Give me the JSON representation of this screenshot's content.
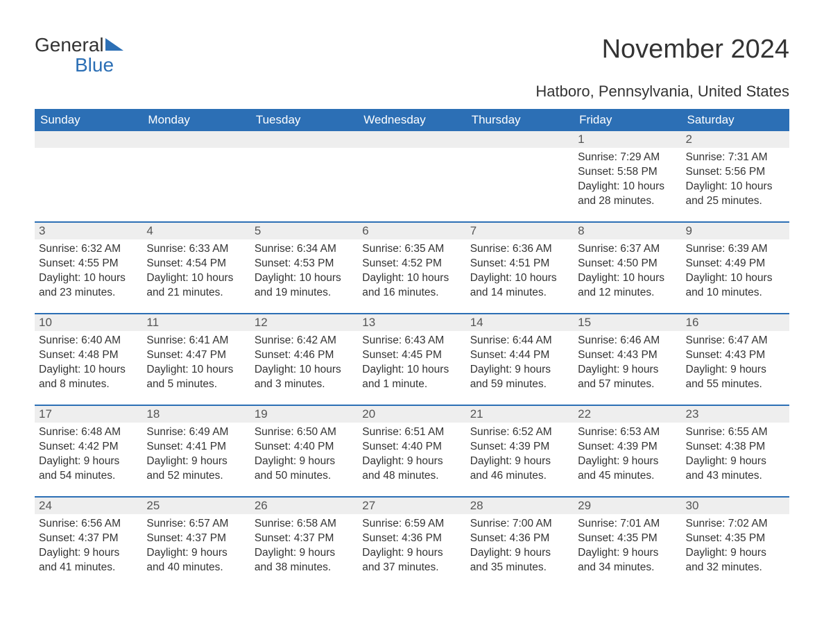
{
  "logo": {
    "line1": "General",
    "line2": "Blue",
    "brand_color": "#2c6fb5"
  },
  "title": "November 2024",
  "location": "Hatboro, Pennsylvania, United States",
  "colors": {
    "header_bg": "#2c6fb5",
    "header_text": "#ffffff",
    "daynum_bg": "#eeeeee",
    "text": "#333333",
    "week_divider": "#2c6fb5"
  },
  "weekdays": [
    "Sunday",
    "Monday",
    "Tuesday",
    "Wednesday",
    "Thursday",
    "Friday",
    "Saturday"
  ],
  "weeks": [
    [
      {
        "day": null
      },
      {
        "day": null
      },
      {
        "day": null
      },
      {
        "day": null
      },
      {
        "day": null
      },
      {
        "day": 1,
        "sunrise": "Sunrise: 7:29 AM",
        "sunset": "Sunset: 5:58 PM",
        "daylight1": "Daylight: 10 hours",
        "daylight2": "and 28 minutes."
      },
      {
        "day": 2,
        "sunrise": "Sunrise: 7:31 AM",
        "sunset": "Sunset: 5:56 PM",
        "daylight1": "Daylight: 10 hours",
        "daylight2": "and 25 minutes."
      }
    ],
    [
      {
        "day": 3,
        "sunrise": "Sunrise: 6:32 AM",
        "sunset": "Sunset: 4:55 PM",
        "daylight1": "Daylight: 10 hours",
        "daylight2": "and 23 minutes."
      },
      {
        "day": 4,
        "sunrise": "Sunrise: 6:33 AM",
        "sunset": "Sunset: 4:54 PM",
        "daylight1": "Daylight: 10 hours",
        "daylight2": "and 21 minutes."
      },
      {
        "day": 5,
        "sunrise": "Sunrise: 6:34 AM",
        "sunset": "Sunset: 4:53 PM",
        "daylight1": "Daylight: 10 hours",
        "daylight2": "and 19 minutes."
      },
      {
        "day": 6,
        "sunrise": "Sunrise: 6:35 AM",
        "sunset": "Sunset: 4:52 PM",
        "daylight1": "Daylight: 10 hours",
        "daylight2": "and 16 minutes."
      },
      {
        "day": 7,
        "sunrise": "Sunrise: 6:36 AM",
        "sunset": "Sunset: 4:51 PM",
        "daylight1": "Daylight: 10 hours",
        "daylight2": "and 14 minutes."
      },
      {
        "day": 8,
        "sunrise": "Sunrise: 6:37 AM",
        "sunset": "Sunset: 4:50 PM",
        "daylight1": "Daylight: 10 hours",
        "daylight2": "and 12 minutes."
      },
      {
        "day": 9,
        "sunrise": "Sunrise: 6:39 AM",
        "sunset": "Sunset: 4:49 PM",
        "daylight1": "Daylight: 10 hours",
        "daylight2": "and 10 minutes."
      }
    ],
    [
      {
        "day": 10,
        "sunrise": "Sunrise: 6:40 AM",
        "sunset": "Sunset: 4:48 PM",
        "daylight1": "Daylight: 10 hours",
        "daylight2": "and 8 minutes."
      },
      {
        "day": 11,
        "sunrise": "Sunrise: 6:41 AM",
        "sunset": "Sunset: 4:47 PM",
        "daylight1": "Daylight: 10 hours",
        "daylight2": "and 5 minutes."
      },
      {
        "day": 12,
        "sunrise": "Sunrise: 6:42 AM",
        "sunset": "Sunset: 4:46 PM",
        "daylight1": "Daylight: 10 hours",
        "daylight2": "and 3 minutes."
      },
      {
        "day": 13,
        "sunrise": "Sunrise: 6:43 AM",
        "sunset": "Sunset: 4:45 PM",
        "daylight1": "Daylight: 10 hours",
        "daylight2": "and 1 minute."
      },
      {
        "day": 14,
        "sunrise": "Sunrise: 6:44 AM",
        "sunset": "Sunset: 4:44 PM",
        "daylight1": "Daylight: 9 hours",
        "daylight2": "and 59 minutes."
      },
      {
        "day": 15,
        "sunrise": "Sunrise: 6:46 AM",
        "sunset": "Sunset: 4:43 PM",
        "daylight1": "Daylight: 9 hours",
        "daylight2": "and 57 minutes."
      },
      {
        "day": 16,
        "sunrise": "Sunrise: 6:47 AM",
        "sunset": "Sunset: 4:43 PM",
        "daylight1": "Daylight: 9 hours",
        "daylight2": "and 55 minutes."
      }
    ],
    [
      {
        "day": 17,
        "sunrise": "Sunrise: 6:48 AM",
        "sunset": "Sunset: 4:42 PM",
        "daylight1": "Daylight: 9 hours",
        "daylight2": "and 54 minutes."
      },
      {
        "day": 18,
        "sunrise": "Sunrise: 6:49 AM",
        "sunset": "Sunset: 4:41 PM",
        "daylight1": "Daylight: 9 hours",
        "daylight2": "and 52 minutes."
      },
      {
        "day": 19,
        "sunrise": "Sunrise: 6:50 AM",
        "sunset": "Sunset: 4:40 PM",
        "daylight1": "Daylight: 9 hours",
        "daylight2": "and 50 minutes."
      },
      {
        "day": 20,
        "sunrise": "Sunrise: 6:51 AM",
        "sunset": "Sunset: 4:40 PM",
        "daylight1": "Daylight: 9 hours",
        "daylight2": "and 48 minutes."
      },
      {
        "day": 21,
        "sunrise": "Sunrise: 6:52 AM",
        "sunset": "Sunset: 4:39 PM",
        "daylight1": "Daylight: 9 hours",
        "daylight2": "and 46 minutes."
      },
      {
        "day": 22,
        "sunrise": "Sunrise: 6:53 AM",
        "sunset": "Sunset: 4:39 PM",
        "daylight1": "Daylight: 9 hours",
        "daylight2": "and 45 minutes."
      },
      {
        "day": 23,
        "sunrise": "Sunrise: 6:55 AM",
        "sunset": "Sunset: 4:38 PM",
        "daylight1": "Daylight: 9 hours",
        "daylight2": "and 43 minutes."
      }
    ],
    [
      {
        "day": 24,
        "sunrise": "Sunrise: 6:56 AM",
        "sunset": "Sunset: 4:37 PM",
        "daylight1": "Daylight: 9 hours",
        "daylight2": "and 41 minutes."
      },
      {
        "day": 25,
        "sunrise": "Sunrise: 6:57 AM",
        "sunset": "Sunset: 4:37 PM",
        "daylight1": "Daylight: 9 hours",
        "daylight2": "and 40 minutes."
      },
      {
        "day": 26,
        "sunrise": "Sunrise: 6:58 AM",
        "sunset": "Sunset: 4:37 PM",
        "daylight1": "Daylight: 9 hours",
        "daylight2": "and 38 minutes."
      },
      {
        "day": 27,
        "sunrise": "Sunrise: 6:59 AM",
        "sunset": "Sunset: 4:36 PM",
        "daylight1": "Daylight: 9 hours",
        "daylight2": "and 37 minutes."
      },
      {
        "day": 28,
        "sunrise": "Sunrise: 7:00 AM",
        "sunset": "Sunset: 4:36 PM",
        "daylight1": "Daylight: 9 hours",
        "daylight2": "and 35 minutes."
      },
      {
        "day": 29,
        "sunrise": "Sunrise: 7:01 AM",
        "sunset": "Sunset: 4:35 PM",
        "daylight1": "Daylight: 9 hours",
        "daylight2": "and 34 minutes."
      },
      {
        "day": 30,
        "sunrise": "Sunrise: 7:02 AM",
        "sunset": "Sunset: 4:35 PM",
        "daylight1": "Daylight: 9 hours",
        "daylight2": "and 32 minutes."
      }
    ]
  ]
}
